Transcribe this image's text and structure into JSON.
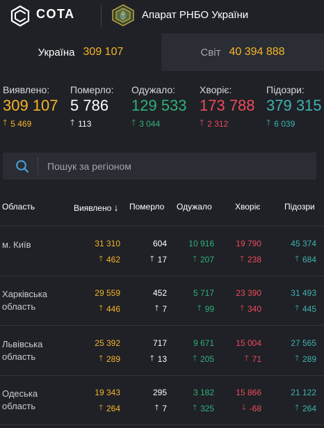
{
  "header": {
    "brand": "COTA",
    "org": "Апарат РНБО України"
  },
  "tabs": [
    {
      "label": "Україна",
      "value": "309 107"
    },
    {
      "label": "Світ",
      "value": "40 394 888"
    }
  ],
  "stats": [
    {
      "label": "Виявлено:",
      "value": "309 107",
      "delta": "5 469",
      "direction": "up",
      "color": "#f7b52a"
    },
    {
      "label": "Померло:",
      "value": "5 786",
      "delta": "113",
      "direction": "up",
      "color": "#ffffff"
    },
    {
      "label": "Одужало:",
      "value": "129 533",
      "delta": "3 044",
      "direction": "up",
      "color": "#2fb27a"
    },
    {
      "label": "Хворіє:",
      "value": "173 788",
      "delta": "2 312",
      "direction": "up",
      "color": "#ef4a5a"
    },
    {
      "label": "Підозри:",
      "value": "379 315",
      "delta": "6 039",
      "direction": "up",
      "color": "#3fb3b0"
    }
  ],
  "search": {
    "placeholder": "Пошук за регіоном",
    "icon": "search-icon"
  },
  "table": {
    "headers": [
      "Область",
      "Виявлено",
      "Померло",
      "Одужало",
      "Хворіє",
      "Підозри"
    ],
    "sort_indicator": "↓",
    "rows": [
      {
        "region": "м. Київ",
        "values": [
          "31 310",
          "604",
          "10 916",
          "19 790",
          "45 374"
        ],
        "deltas": [
          "462",
          "17",
          "207",
          "238",
          "684"
        ],
        "directions": [
          "up",
          "up",
          "up",
          "up",
          "up"
        ]
      },
      {
        "region": "Харківська область",
        "values": [
          "29 559",
          "452",
          "5 717",
          "23 390",
          "31 493"
        ],
        "deltas": [
          "446",
          "7",
          "99",
          "340",
          "445"
        ],
        "directions": [
          "up",
          "up",
          "up",
          "up",
          "up"
        ]
      },
      {
        "region": "Львівська область",
        "values": [
          "25 392",
          "717",
          "9 671",
          "15 004",
          "27 565"
        ],
        "deltas": [
          "289",
          "13",
          "205",
          "71",
          "289"
        ],
        "directions": [
          "up",
          "up",
          "up",
          "up",
          "up"
        ]
      },
      {
        "region": "Одеська область",
        "values": [
          "19 343",
          "295",
          "3 182",
          "15 866",
          "21 122"
        ],
        "deltas": [
          "264",
          "7",
          "325",
          "-68",
          "264"
        ],
        "directions": [
          "up",
          "up",
          "up",
          "down",
          "up"
        ]
      }
    ]
  },
  "colors": {
    "background": "#1f2126",
    "panel": "#2a2d33",
    "confirmed": "#f7b52a",
    "deaths": "#ffffff",
    "recovered": "#2fb27a",
    "active": "#ef4a5a",
    "suspected": "#3fb3b0"
  }
}
